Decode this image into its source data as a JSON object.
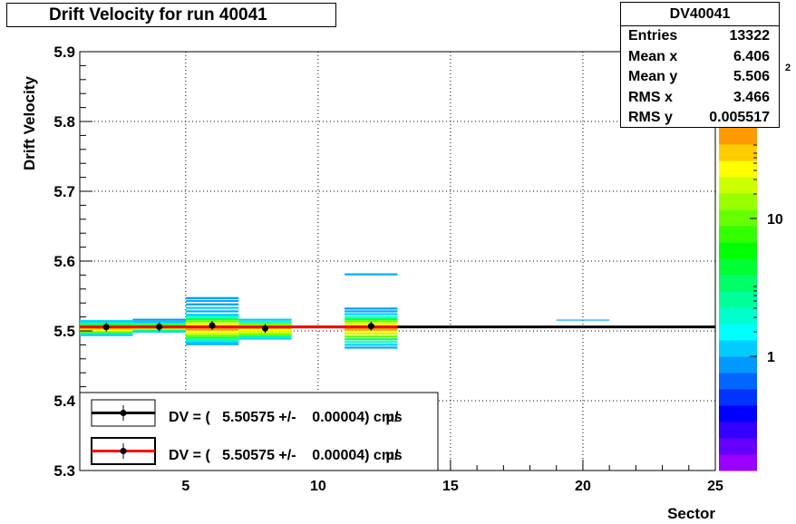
{
  "title": "Drift Velocity for run 40041",
  "stats": {
    "name": "DV40041",
    "rows": [
      {
        "label": "Entries",
        "value": "13322"
      },
      {
        "label": "Mean x",
        "value": "6.406"
      },
      {
        "label": "Mean y",
        "value": "5.506"
      },
      {
        "label": "RMS x",
        "value": "3.466"
      },
      {
        "label": "RMS y",
        "value": "0.005517"
      }
    ]
  },
  "legend": [
    {
      "text": "DV = (   5.50575 +/-    0.00004) cm/",
      "unit_fragment": "µs",
      "line_color": "#000000"
    },
    {
      "text": "DV = (   5.50575 +/-    0.00004) cm/",
      "unit_fragment": "µs",
      "line_color": "#ff0000"
    }
  ],
  "colorbar": {
    "tick_labels": [
      "1",
      "10"
    ],
    "partial_label": "2"
  },
  "chart_data": {
    "type": "heatmap",
    "title": "Drift Velocity for run 40041",
    "xlabel": "Sector",
    "ylabel": "Drift Velocity",
    "xlim": [
      1,
      25
    ],
    "ylim": [
      5.3,
      5.9
    ],
    "x_ticks": [
      5,
      10,
      15,
      20,
      25
    ],
    "y_ticks": [
      5.3,
      5.4,
      5.5,
      5.6,
      5.7,
      5.8,
      5.9
    ],
    "grid": true,
    "points": [
      {
        "x": 2,
        "y": 5.5055
      },
      {
        "x": 4,
        "y": 5.5058
      },
      {
        "x": 6,
        "y": 5.5078
      },
      {
        "x": 8,
        "y": 5.5035
      },
      {
        "x": 12,
        "y": 5.5068
      }
    ],
    "fits": [
      {
        "y": 5.50575,
        "xmin": 1,
        "xmax": 25,
        "color": "#000000"
      },
      {
        "y": 5.50575,
        "xmin": 1,
        "xmax": 13,
        "color": "#ff0000"
      }
    ],
    "bins": [
      {
        "x0": 1,
        "x1": 3,
        "rows": [
          [
            5.494,
            "#00ccff"
          ],
          [
            5.497,
            "#00ff99"
          ],
          [
            5.499,
            "#66ff00"
          ],
          [
            5.501,
            "#ffff00"
          ],
          [
            5.503,
            "#ffcc00"
          ],
          [
            5.5055,
            "#ffff00"
          ],
          [
            5.508,
            "#99ff00"
          ],
          [
            5.51,
            "#00ff66"
          ],
          [
            5.512,
            "#00ffcc"
          ],
          [
            5.514,
            "#00ccff"
          ]
        ]
      },
      {
        "x0": 3,
        "x1": 5,
        "rows": [
          [
            5.499,
            "#00ccff"
          ],
          [
            5.501,
            "#00ff99"
          ],
          [
            5.503,
            "#ccff00"
          ],
          [
            5.505,
            "#ffcc00"
          ],
          [
            5.507,
            "#ffff00"
          ],
          [
            5.509,
            "#66ff00"
          ],
          [
            5.511,
            "#00ffcc"
          ],
          [
            5.513,
            "#00ccff"
          ],
          [
            5.516,
            "#0099ff"
          ]
        ]
      },
      {
        "x0": 5,
        "x1": 7,
        "rows": [
          [
            5.481,
            "#00aaff"
          ],
          [
            5.484,
            "#00ccff"
          ],
          [
            5.487,
            "#00ffcc"
          ],
          [
            5.49,
            "#00ff66"
          ],
          [
            5.493,
            "#66ff00"
          ],
          [
            5.496,
            "#ccff00"
          ],
          [
            5.499,
            "#ffff00"
          ],
          [
            5.502,
            "#ff9900"
          ],
          [
            5.505,
            "#ffcc00"
          ],
          [
            5.508,
            "#ffff00"
          ],
          [
            5.511,
            "#ccff00"
          ],
          [
            5.514,
            "#66ff00"
          ],
          [
            5.517,
            "#00ff66"
          ],
          [
            5.52,
            "#00ffcc"
          ],
          [
            5.523,
            "#00ccff"
          ],
          [
            5.528,
            "#00aaff"
          ],
          [
            5.533,
            "#00ccff"
          ],
          [
            5.538,
            "#0099ff"
          ],
          [
            5.543,
            "#00aaff"
          ],
          [
            5.547,
            "#0099ff"
          ]
        ]
      },
      {
        "x0": 7,
        "x1": 9,
        "rows": [
          [
            5.489,
            "#00ccff"
          ],
          [
            5.492,
            "#00ff99"
          ],
          [
            5.495,
            "#66ff00"
          ],
          [
            5.498,
            "#ccff00"
          ],
          [
            5.501,
            "#ffff00"
          ],
          [
            5.504,
            "#ffcc00"
          ],
          [
            5.507,
            "#ffff00"
          ],
          [
            5.51,
            "#66ff00"
          ],
          [
            5.513,
            "#00ffcc"
          ],
          [
            5.516,
            "#00ccff"
          ]
        ]
      },
      {
        "x0": 11,
        "x1": 13,
        "rows": [
          [
            5.476,
            "#00aaff"
          ],
          [
            5.48,
            "#00ccff"
          ],
          [
            5.484,
            "#00ffcc"
          ],
          [
            5.488,
            "#00ff66"
          ],
          [
            5.492,
            "#66ff00"
          ],
          [
            5.496,
            "#ccff00"
          ],
          [
            5.499,
            "#ffff00"
          ],
          [
            5.502,
            "#ff9900"
          ],
          [
            5.505,
            "#ffcc00"
          ],
          [
            5.508,
            "#ffff00"
          ],
          [
            5.511,
            "#ccff00"
          ],
          [
            5.514,
            "#66ff00"
          ],
          [
            5.517,
            "#00ff66"
          ],
          [
            5.52,
            "#00ffcc"
          ],
          [
            5.524,
            "#00ccff"
          ],
          [
            5.528,
            "#00aaff"
          ],
          [
            5.532,
            "#0099ff"
          ],
          [
            5.581,
            "#00aaff"
          ]
        ]
      },
      {
        "x0": 19,
        "x1": 21,
        "rows": [
          [
            5.5155,
            "#00aaff"
          ]
        ]
      }
    ]
  }
}
